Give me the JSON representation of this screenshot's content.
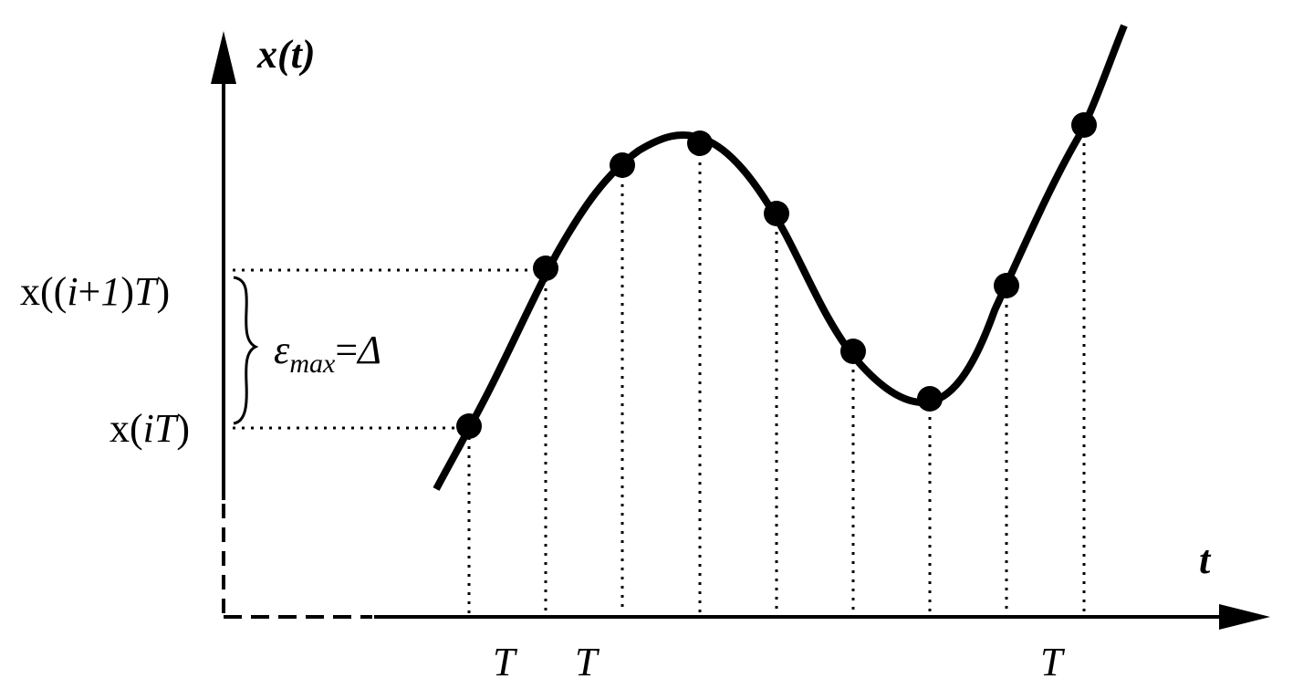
{
  "diagram": {
    "y_axis_label": "x(t)",
    "x_axis_label": "t",
    "upper_level": {
      "prefix": "x((",
      "i": "i",
      "plus": "+",
      "one": "1",
      "close1": ")",
      "T": "T",
      "close2": ")"
    },
    "lower_level": {
      "prefix": "x(",
      "iT": "iT",
      "close": ")"
    },
    "epsilon": {
      "symbol": "ε",
      "subscript": "max",
      "equals": "=",
      "delta": "Δ"
    },
    "period_labels": [
      "T",
      "T",
      "T"
    ],
    "colors": {
      "ink": "#000000",
      "background": "#ffffff"
    }
  }
}
